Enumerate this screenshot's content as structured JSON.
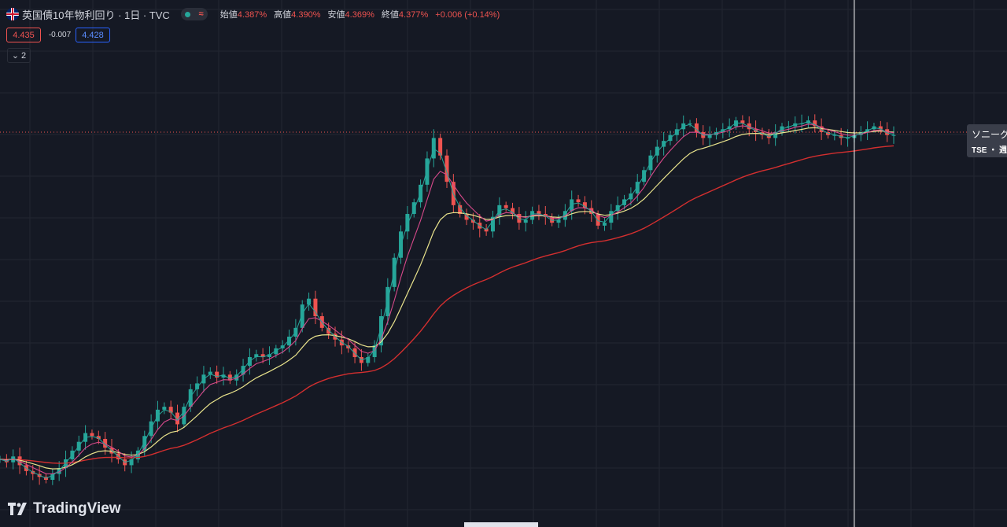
{
  "header": {
    "title": "英国債10年物利回り · 1日 · TVC",
    "ohlc": [
      {
        "label": "始値",
        "value": "4.387%"
      },
      {
        "label": "高値",
        "value": "4.390%"
      },
      {
        "label": "安値",
        "value": "4.369%"
      },
      {
        "label": "終値",
        "value": "4.377%"
      }
    ],
    "change": "+0.006 (+0.14%)",
    "pill_icon": "≈"
  },
  "trade": {
    "sell": "4.435",
    "spread": "-0.007",
    "buy": "4.428"
  },
  "collapse": {
    "icon": "⌄",
    "count": "2"
  },
  "tooltip": {
    "line1": "ソニーグ",
    "line2": "TSE ・ 週"
  },
  "logo_text": "TradingView",
  "colors": {
    "background": "#151924",
    "grid": "#222632",
    "up": "#26a69a",
    "down": "#ef5350",
    "ma_fast": "#26a69a",
    "ma_mid": "#d6498a",
    "ma_slow": "#e9e38c",
    "ma_long": "#d32f2f",
    "crosshair": "#ffffff",
    "price_line": "#ef5350"
  },
  "chart_data": {
    "type": "line",
    "title": "英国債10年物利回り",
    "ylim": [
      3.2,
      4.6
    ],
    "price_line": 4.39,
    "crosshair_index": 130,
    "points": [
      3.27,
      3.26,
      3.28,
      3.25,
      3.23,
      3.22,
      3.21,
      3.2,
      3.22,
      3.24,
      3.27,
      3.3,
      3.33,
      3.36,
      3.35,
      3.34,
      3.31,
      3.29,
      3.27,
      3.25,
      3.27,
      3.3,
      3.35,
      3.4,
      3.44,
      3.45,
      3.43,
      3.39,
      3.45,
      3.51,
      3.53,
      3.56,
      3.57,
      3.55,
      3.56,
      3.54,
      3.56,
      3.59,
      3.62,
      3.63,
      3.62,
      3.63,
      3.65,
      3.66,
      3.69,
      3.72,
      3.8,
      3.82,
      3.76,
      3.72,
      3.7,
      3.68,
      3.66,
      3.65,
      3.62,
      3.6,
      3.62,
      3.66,
      3.76,
      3.86,
      3.96,
      4.05,
      4.11,
      4.15,
      4.21,
      4.3,
      4.37,
      4.31,
      4.22,
      4.14,
      4.11,
      4.09,
      4.08,
      4.06,
      4.05,
      4.1,
      4.14,
      4.13,
      4.11,
      4.08,
      4.09,
      4.12,
      4.11,
      4.1,
      4.08,
      4.09,
      4.12,
      4.16,
      4.15,
      4.13,
      4.11,
      4.07,
      4.08,
      4.12,
      4.14,
      4.16,
      4.18,
      4.22,
      4.26,
      4.31,
      4.34,
      4.36,
      4.38,
      4.4,
      4.42,
      4.42,
      4.39,
      4.37,
      4.38,
      4.39,
      4.4,
      4.41,
      4.43,
      4.42,
      4.4,
      4.39,
      4.38,
      4.37,
      4.39,
      4.41,
      4.41,
      4.42,
      4.42,
      4.43,
      4.41,
      4.39,
      4.38,
      4.38,
      4.37,
      4.37,
      4.38,
      4.39,
      4.4,
      4.41,
      4.4,
      4.38,
      4.38
    ]
  }
}
